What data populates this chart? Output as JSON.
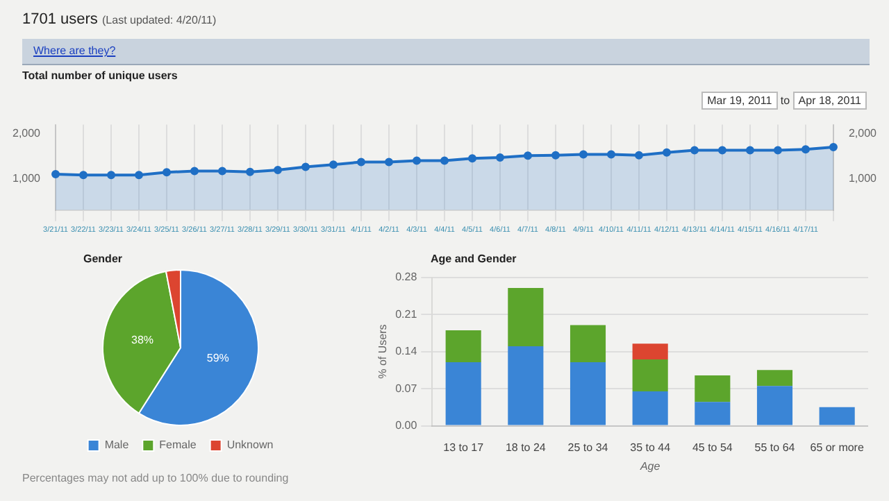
{
  "chart_data": [
    {
      "type": "area",
      "title": "Total number of unique users",
      "annotations": [
        "1701 users",
        "(Last updated: 4/20/11)",
        "Where are they?",
        "Mar 19, 2011",
        "to",
        "Apr 18, 2011"
      ],
      "categories": [
        "3/21/11",
        "3/22/11",
        "3/23/11",
        "3/24/11",
        "3/25/11",
        "3/26/11",
        "3/27/11",
        "3/28/11",
        "3/29/11",
        "3/30/11",
        "3/31/11",
        "4/1/11",
        "4/2/11",
        "4/3/11",
        "4/4/11",
        "4/5/11",
        "4/6/11",
        "4/7/11",
        "4/8/11",
        "4/9/11",
        "4/10/11",
        "4/11/11",
        "4/12/11",
        "4/13/11",
        "4/14/11",
        "4/15/11",
        "4/16/11",
        "4/17/11",
        null
      ],
      "values": [
        1100,
        1080,
        1080,
        1080,
        1140,
        1170,
        1170,
        1150,
        1190,
        1260,
        1310,
        1370,
        1370,
        1400,
        1400,
        1450,
        1470,
        1510,
        1520,
        1540,
        1540,
        1520,
        1580,
        1630,
        1630,
        1630,
        1630,
        1650,
        1700
      ],
      "color": "#1f6fc5",
      "ylim": [
        300,
        2200
      ],
      "yticks": [
        {
          "value": 1000,
          "label": "1,000"
        },
        {
          "value": 2000,
          "label": "2,000"
        }
      ],
      "y2lim": [
        300,
        2200
      ],
      "y2ticks": [
        {
          "value": 1000,
          "label": "1,000"
        },
        {
          "value": 2000,
          "label": "2,000"
        }
      ],
      "grid": "x",
      "marker": "circle"
    },
    {
      "type": "pie",
      "title": "Gender",
      "categories": [
        "Male",
        "Female",
        "Unknown"
      ],
      "values": [
        59,
        38,
        3
      ],
      "colors": [
        "#3a85d6",
        "#5ca52c",
        "#dc4530"
      ],
      "value_labels": [
        "59%",
        "38%",
        null
      ],
      "legend": "bottom",
      "annotations": [
        "Percentages may not add up to 100% due to rounding"
      ]
    },
    {
      "type": "bar",
      "title": "Age and Gender",
      "xlabel": "Age",
      "ylabel": "% of Users",
      "stacked": true,
      "categories": [
        "13 to 17",
        "18 to 24",
        "25 to 34",
        "35 to 44",
        "45 to 54",
        "55 to 64",
        "65 or more"
      ],
      "series": [
        {
          "color": "#3a85d6",
          "values": [
            0.12,
            0.15,
            0.12,
            0.065,
            0.045,
            0.075,
            0.035
          ]
        },
        {
          "color": "#5ca52c",
          "values": [
            0.06,
            0.11,
            0.07,
            0.06,
            0.05,
            0.03,
            0
          ]
        },
        {
          "color": "#dc4530",
          "values": [
            0,
            0,
            0,
            0.03,
            0,
            0,
            0
          ]
        }
      ],
      "ylim": [
        0,
        0.28
      ],
      "yticks": [
        {
          "value": 0,
          "label": "0.00"
        },
        0.07,
        0.14,
        0.21,
        0.28
      ],
      "grid": "y"
    }
  ]
}
